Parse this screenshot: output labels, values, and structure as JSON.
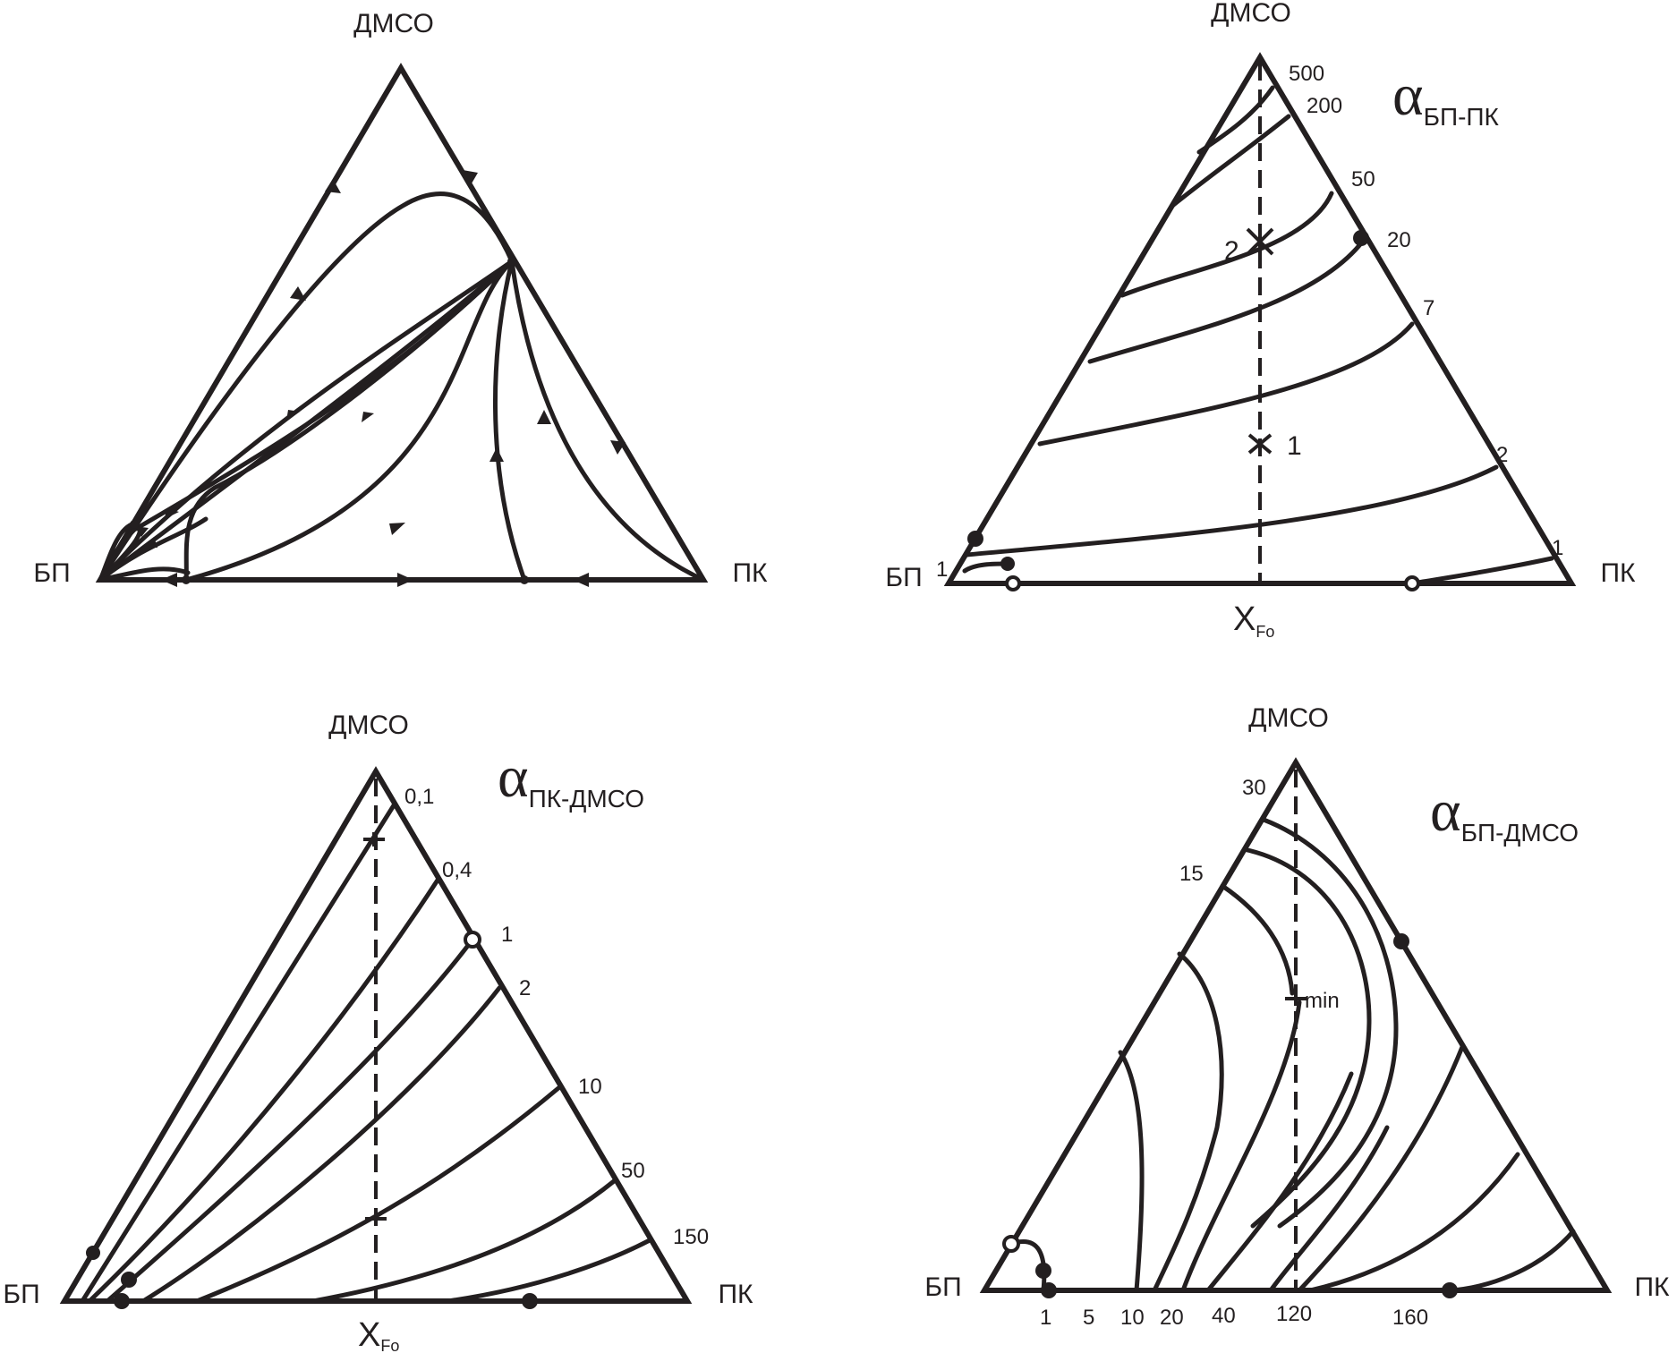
{
  "panel_a": {
    "vertex_top": "ДМСО",
    "vertex_left": "БП",
    "vertex_right": "ПК"
  },
  "panel_b": {
    "vertex_top": "ДМСО",
    "vertex_left": "БП",
    "vertex_right": "ПК",
    "alpha_symbol": "α",
    "alpha_subscript": "БП-ПК",
    "axis_x_main": "X",
    "axis_x_sub": "Fo",
    "isoline_labels": [
      "500",
      "200",
      "50",
      "20",
      "7",
      "2",
      "1",
      "1"
    ],
    "point_labels": [
      "2",
      "1"
    ]
  },
  "panel_c": {
    "vertex_top": "ДМСО",
    "vertex_left": "БП",
    "vertex_right": "ПК",
    "alpha_symbol": "α",
    "alpha_subscript": "ПК-ДМСО",
    "axis_x_main": "X",
    "axis_x_sub": "Fo",
    "isoline_labels": [
      "0,1",
      "0,4",
      "1",
      "2",
      "10",
      "50",
      "150"
    ]
  },
  "panel_d": {
    "vertex_top": "ДМСО",
    "vertex_left": "БП",
    "vertex_right": "ПК",
    "alpha_symbol": "α",
    "alpha_subscript": "БП-ДМСО",
    "side_labels": [
      "30",
      "15"
    ],
    "bottom_labels": [
      "1",
      "5",
      "10",
      "20",
      "40",
      "120",
      "160"
    ],
    "min_label": "min"
  }
}
